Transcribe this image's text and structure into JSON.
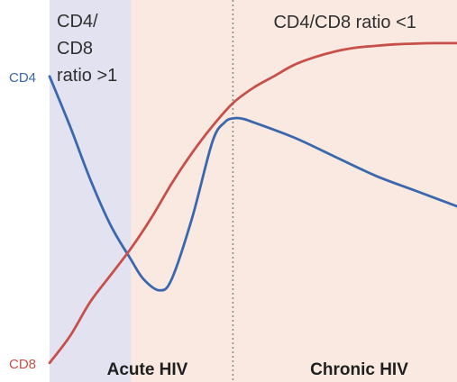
{
  "chart_data": {
    "type": "line",
    "title": "",
    "xlabel": "",
    "ylabel": "",
    "xlim": [
      0,
      100
    ],
    "ylim": [
      0,
      100
    ],
    "grid": false,
    "legend": "series names labeled at left edge",
    "regions": [
      {
        "name": "Acute HIV",
        "x_start": 0,
        "x_end": 20,
        "fill": "#e3e2f0",
        "label_lines": [
          "CD4/",
          "CD8",
          "ratio >1"
        ]
      },
      {
        "name": "Acute HIV",
        "x_start": 20,
        "x_end": 45,
        "fill": "#f9e9e0",
        "label_lines": []
      },
      {
        "name": "Chronic HIV",
        "x_start": 45,
        "x_end": 100,
        "fill": "#f9e9e0",
        "label_lines": [
          "CD4/CD8 ratio <1"
        ]
      }
    ],
    "phase_labels": [
      {
        "text": "Acute HIV",
        "x": 24
      },
      {
        "text": "Chronic HIV",
        "x": 76
      }
    ],
    "divider_x": 45,
    "series": [
      {
        "name": "CD4",
        "color": "#3b67ad",
        "x": [
          0,
          5,
          10,
          15,
          20,
          23,
          27,
          30,
          35,
          40,
          43,
          45,
          47,
          50,
          60,
          70,
          80,
          90,
          100
        ],
        "y": [
          80,
          67,
          53,
          41,
          32,
          27,
          24,
          27,
          43,
          63,
          68,
          69,
          69,
          68,
          64,
          59,
          54,
          50,
          46
        ]
      },
      {
        "name": "CD8",
        "color": "#c7504b",
        "x": [
          0,
          5,
          10,
          15,
          20,
          25,
          30,
          35,
          40,
          45,
          50,
          55,
          60,
          65,
          70,
          75,
          80,
          85,
          90,
          95,
          100
        ],
        "y": [
          5,
          12,
          21,
          28,
          35,
          43,
          52,
          60,
          67,
          73,
          77,
          80,
          83,
          85,
          86.5,
          87.5,
          88,
          88.4,
          88.6,
          88.7,
          88.7
        ]
      }
    ]
  }
}
